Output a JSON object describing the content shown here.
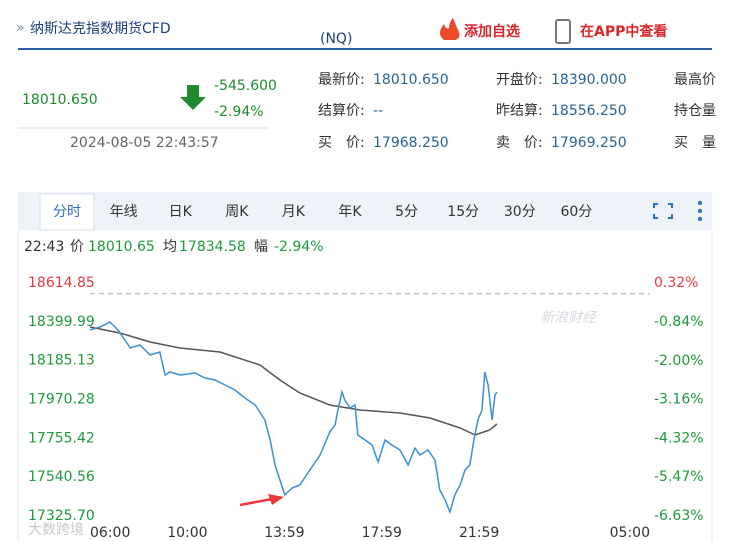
{
  "header": {
    "title": "纳斯达克指数期货CFD",
    "code": "(NQ)",
    "add": "添加自选",
    "app": "在APP中查看"
  },
  "quote": {
    "price": "18010.650",
    "change": "-545.600",
    "change_pct": "-2.94%",
    "time": "2024-08-05 22:43:57",
    "fields": [
      [
        {
          "label": "最新价:",
          "value": "18010.650"
        },
        {
          "label": "开盘价:",
          "value": "18390.000"
        },
        {
          "label": "最高价"
        }
      ],
      [
        {
          "label": "结算价:",
          "value": "--"
        },
        {
          "label": "昨结算:",
          "value": "18556.250"
        },
        {
          "label": "持仓量"
        }
      ],
      [
        {
          "label": "买　价:",
          "value": "17968.250"
        },
        {
          "label": "卖　价:",
          "value": "17969.250"
        },
        {
          "label": "买　量"
        }
      ]
    ]
  },
  "tabs": [
    "分时",
    "年线",
    "日K",
    "周K",
    "月K",
    "年K",
    "5分",
    "15分",
    "30分",
    "60分"
  ],
  "info": {
    "time": "22:43",
    "price_label": "价",
    "price": "18010.65",
    "avg_label": "均",
    "avg": "17834.58",
    "chg_label": "幅",
    "chg": "-2.94%"
  },
  "watermarks": [
    "新浪财经",
    "大数跨境"
  ],
  "chart_data": {
    "type": "line",
    "xlim": [
      0,
      1380
    ],
    "xticks": [
      {
        "value": 0,
        "label": "06:00"
      },
      {
        "value": 240,
        "label": "10:00"
      },
      {
        "value": 479,
        "label": "13:59"
      },
      {
        "value": 719,
        "label": "17:59"
      },
      {
        "value": 959,
        "label": "21:59"
      },
      {
        "value": 1380,
        "label": "05:00"
      }
    ],
    "ylim": [
      17325.7,
      18614.85
    ],
    "yticks": [
      18614.85,
      18399.99,
      18185.13,
      17970.28,
      17755.42,
      17540.56,
      {
        "value": 17325.7,
        "label": "17325.70"
      }
    ],
    "y2lim": [
      -6.63,
      0.32
    ],
    "y2ticks": [
      {
        "value": 0.32,
        "label": "0.32%"
      },
      {
        "value": -0.84,
        "label": "-0.84%"
      },
      {
        "value": -2.0,
        "label": "-2.00%"
      },
      {
        "value": -3.16,
        "label": "-3.16%"
      },
      {
        "value": -4.32,
        "label": "-4.32%"
      },
      {
        "value": -5.47,
        "label": "-5.47%"
      },
      {
        "value": -6.63,
        "label": "-6.63%"
      }
    ],
    "up_color": "#e8383d",
    "down_color": "#1f9a3c",
    "series": [
      {
        "color": "#3a8fd6",
        "x": [
          0,
          25,
          49,
          69,
          86,
          99,
          123,
          148,
          172,
          185,
          197,
          222,
          259,
          283,
          308,
          333,
          357,
          382,
          407,
          431,
          444,
          456,
          468,
          480,
          498,
          517,
          542,
          567,
          591,
          604,
          611,
          621,
          628,
          641,
          653,
          660,
          678,
          695,
          710,
          727,
          744,
          764,
          784,
          801,
          813,
          833,
          850,
          862,
          875,
          887,
          899,
          912,
          924,
          936,
          946,
          956,
          966,
          973,
          981,
          991,
          998,
          1003
        ],
        "values": [
          18354.8,
          18371.4,
          18399.1,
          18354.8,
          18299.5,
          18255.2,
          18271.8,
          18216.5,
          18233.1,
          18105.8,
          18122.4,
          18105.8,
          18116.9,
          18089.2,
          18078.2,
          18050.5,
          18022.8,
          17978.6,
          17939.8,
          17856.8,
          17746.2,
          17607.8,
          17524.8,
          17441.8,
          17480.6,
          17497.2,
          17580.2,
          17663.2,
          17790.4,
          17829.2,
          17912.2,
          18011.8,
          17967.5,
          17923.3,
          17939.8,
          17773.9,
          17746.2,
          17718.6,
          17624.5,
          17746.2,
          17718.6,
          17690.9,
          17607.8,
          17701.9,
          17663.2,
          17690.9,
          17635.5,
          17469.6,
          17414.2,
          17347.8,
          17441.8,
          17497.2,
          17580.2,
          17607.8,
          17746.2,
          17856.8,
          17912.2,
          18122.4,
          18050.5,
          17856.8,
          17995.2,
          18010.65
        ]
      },
      {
        "color": "#555555",
        "x": [
          0,
          74,
          148,
          222,
          320,
          419,
          468,
          517,
          591,
          665,
          764,
          838,
          912,
          949,
          985,
          1003
        ],
        "values": [
          18371.4,
          18338.2,
          18288.4,
          18255.2,
          18233.1,
          18161.2,
          18078.2,
          18006.2,
          17939.8,
          17912.2,
          17895.6,
          17867.9,
          17812.6,
          17773.9,
          17801.5,
          17834.58
        ]
      }
    ]
  }
}
